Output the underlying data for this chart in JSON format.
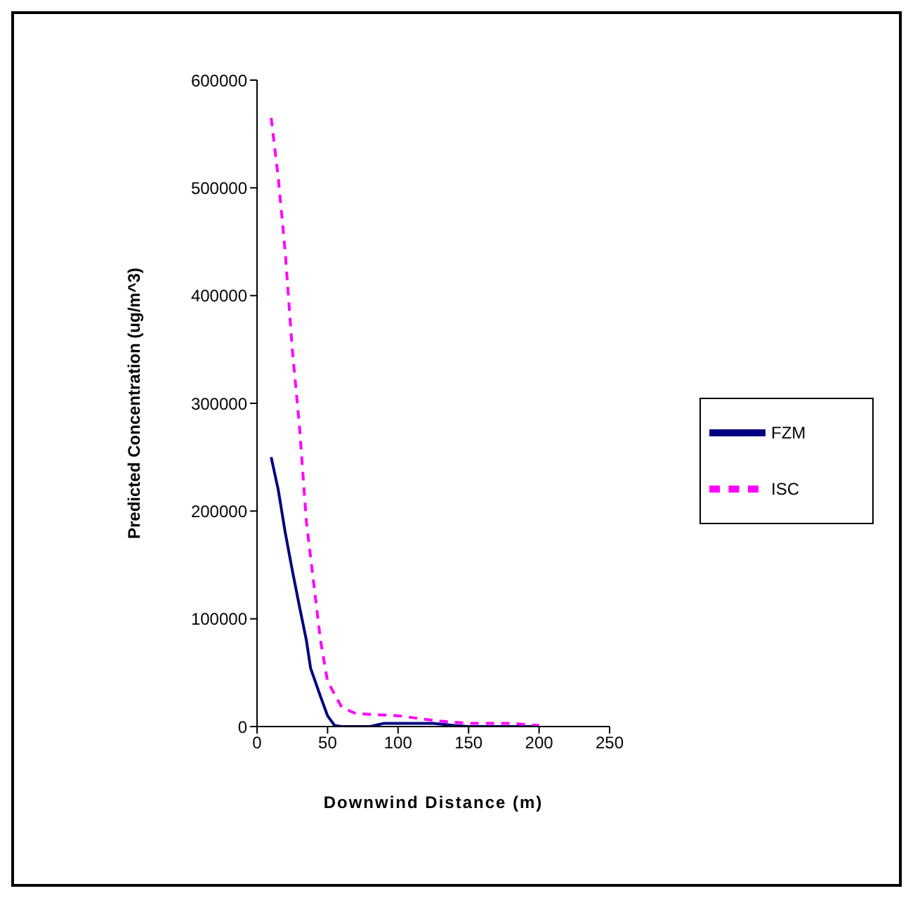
{
  "chart_data": {
    "type": "line",
    "xlabel": "Downwind Distance (m)",
    "ylabel": "Predicted Concentration (ug/m^3)",
    "xlim": [
      0,
      250
    ],
    "xticks": [
      0,
      50,
      100,
      150,
      200,
      250
    ],
    "ylim": [
      0,
      600000
    ],
    "yticks": [
      0,
      100000,
      200000,
      300000,
      400000,
      500000,
      600000
    ],
    "legend": "right",
    "marker": "none",
    "series": [
      {
        "name": "FZM",
        "color": "#000080",
        "line_style": "solid",
        "x": [
          10,
          15,
          20,
          25,
          30,
          35,
          38,
          45,
          50,
          55,
          60,
          80,
          90,
          100,
          125,
          140,
          150,
          200
        ],
        "values": [
          250000,
          220000,
          180000,
          145000,
          112000,
          80000,
          54000,
          28000,
          10000,
          1000,
          0,
          0,
          3000,
          3000,
          3000,
          1000,
          0,
          0
        ]
      },
      {
        "name": "ISC",
        "color": "#ff00ff",
        "line_style": "dashed",
        "x": [
          10,
          15,
          20,
          25,
          30,
          35,
          40,
          45,
          50,
          60,
          70,
          100,
          130,
          150,
          180,
          200
        ],
        "values": [
          565000,
          510000,
          440000,
          350000,
          280000,
          190000,
          135000,
          80000,
          42000,
          18000,
          12000,
          10000,
          5000,
          3000,
          3000,
          1000
        ]
      }
    ]
  }
}
